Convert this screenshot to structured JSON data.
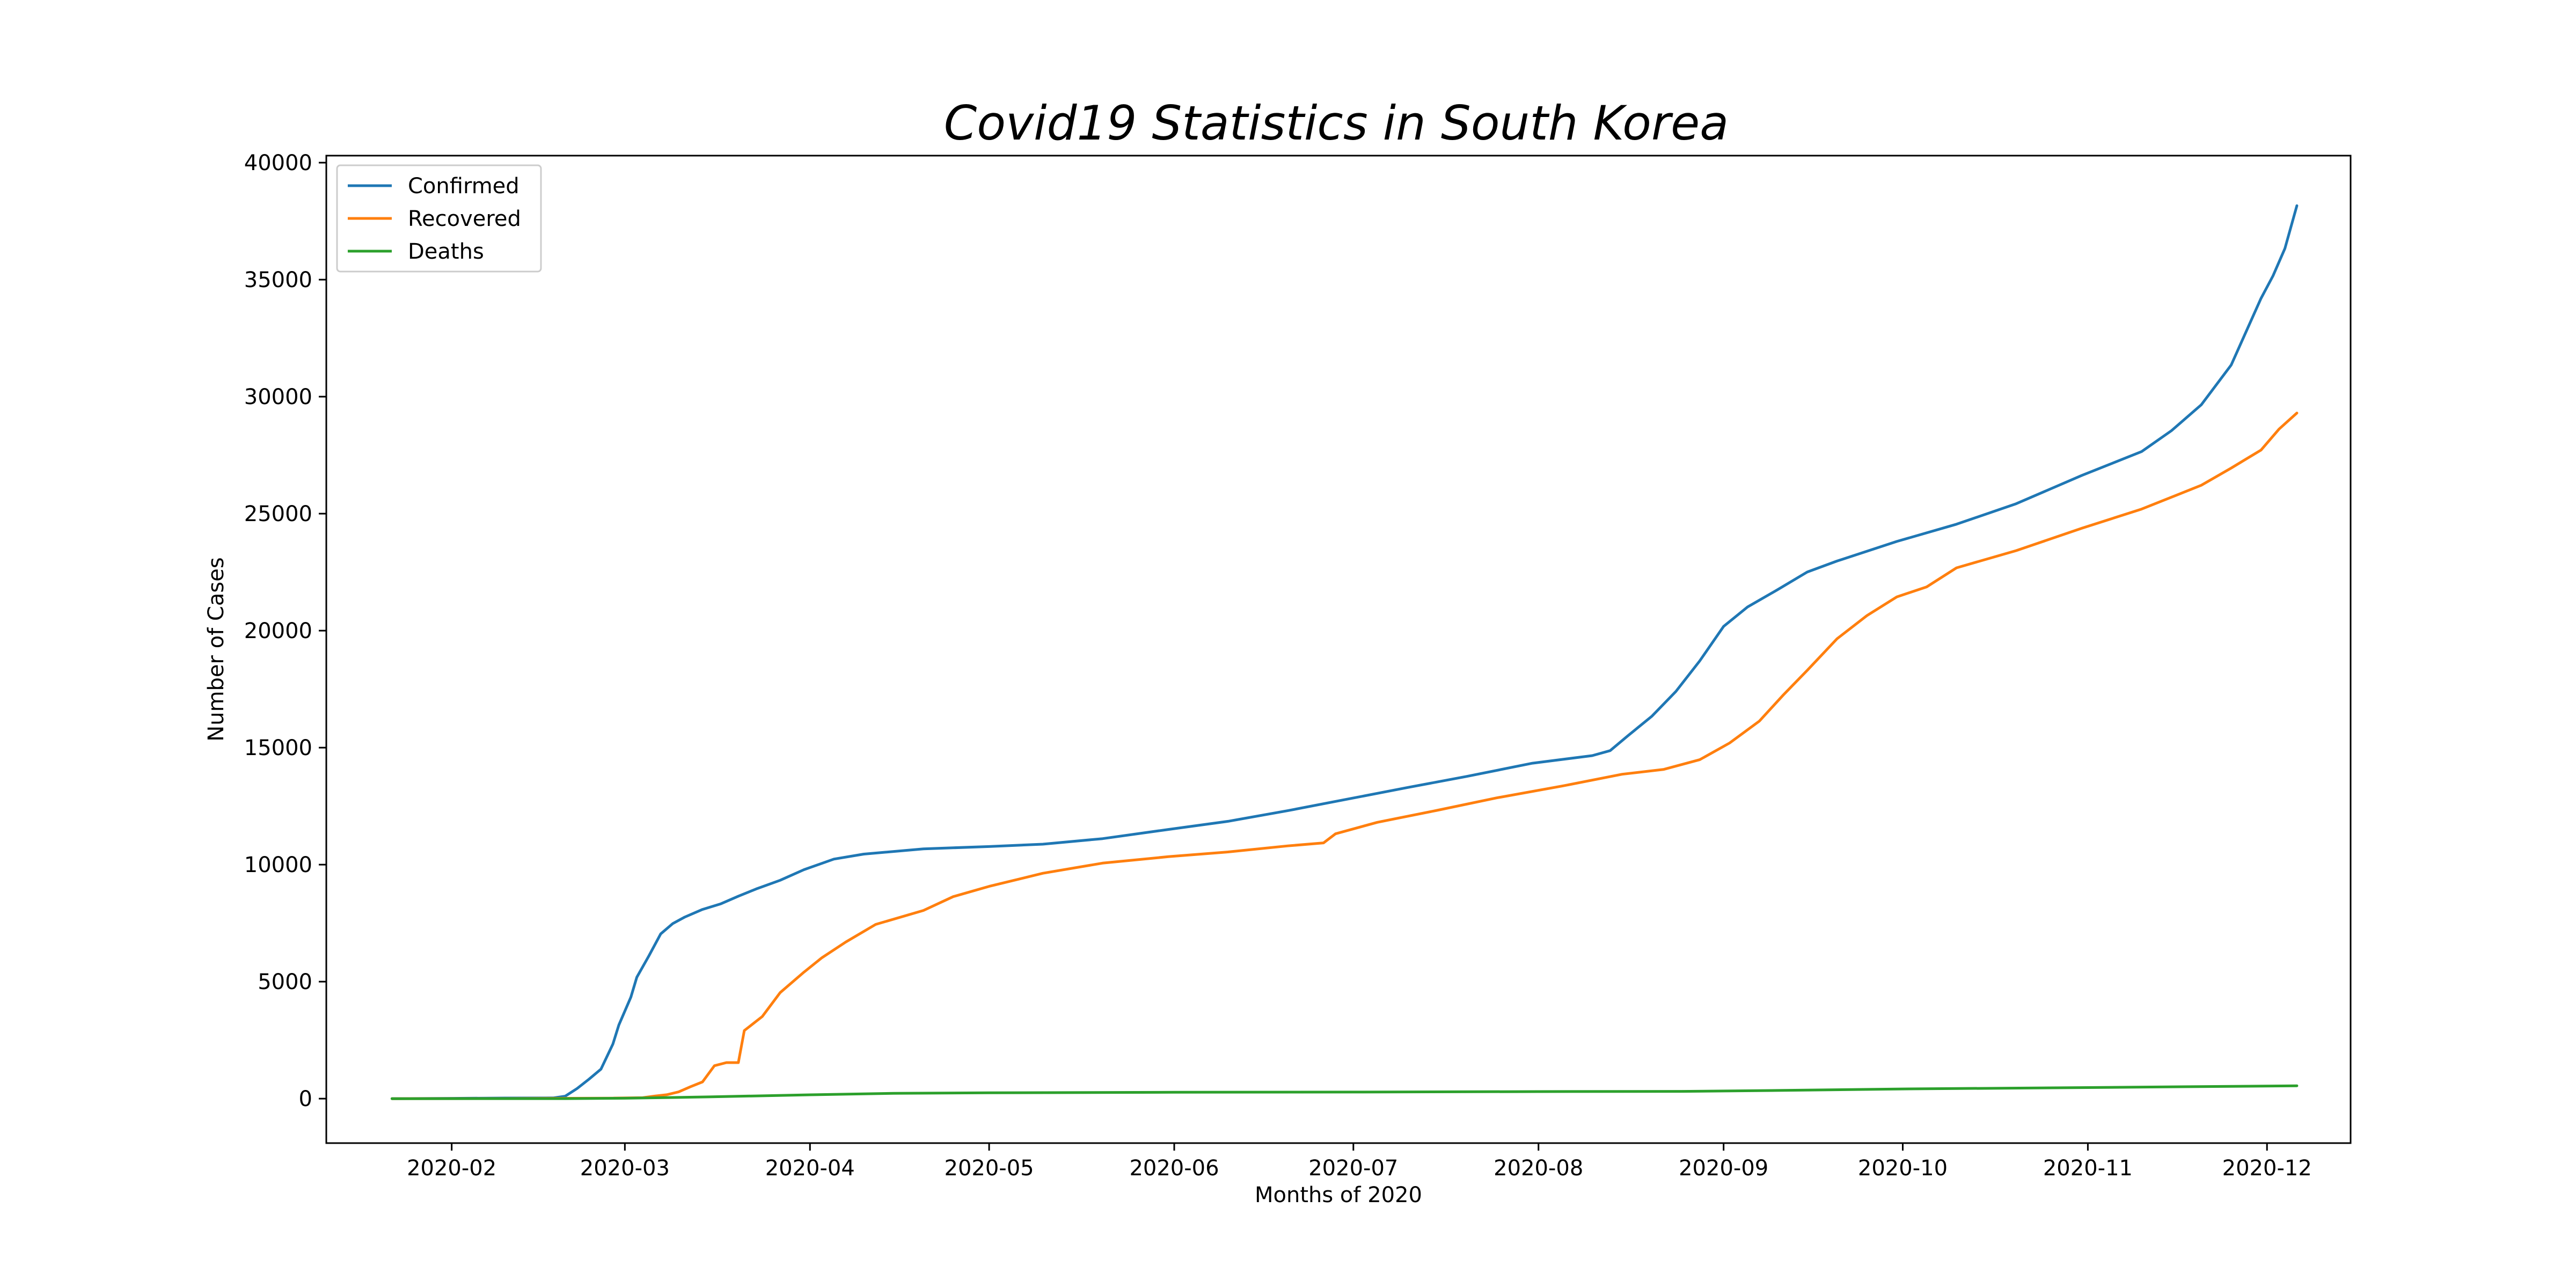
{
  "chart_data": {
    "type": "line",
    "title": "Covid19 Statistics in South Korea",
    "xlabel": "Months of 2020",
    "ylabel": "Number of Cases",
    "x_ticks": [
      "2020-02",
      "2020-03",
      "2020-04",
      "2020-05",
      "2020-06",
      "2020-07",
      "2020-08",
      "2020-09",
      "2020-10",
      "2020-11",
      "2020-12"
    ],
    "y_ticks": [
      0,
      5000,
      10000,
      15000,
      20000,
      25000,
      30000,
      35000,
      40000
    ],
    "xlim": [
      "2020-01-11",
      "2020-12-15"
    ],
    "ylim": [
      -1900,
      40300
    ],
    "grid": false,
    "legend_position": "top-left",
    "series": [
      {
        "name": "Confirmed",
        "color": "#1f77b4",
        "points": [
          [
            "2020-01-22",
            1
          ],
          [
            "2020-02-01",
            12
          ],
          [
            "2020-02-10",
            27
          ],
          [
            "2020-02-18",
            31
          ],
          [
            "2020-02-20",
            104
          ],
          [
            "2020-02-22",
            433
          ],
          [
            "2020-02-24",
            833
          ],
          [
            "2020-02-26",
            1261
          ],
          [
            "2020-02-28",
            2337
          ],
          [
            "2020-02-29",
            3150
          ],
          [
            "2020-03-02",
            4335
          ],
          [
            "2020-03-03",
            5186
          ],
          [
            "2020-03-05",
            6088
          ],
          [
            "2020-03-07",
            7041
          ],
          [
            "2020-03-09",
            7478
          ],
          [
            "2020-03-11",
            7755
          ],
          [
            "2020-03-14",
            8086
          ],
          [
            "2020-03-17",
            8320
          ],
          [
            "2020-03-20",
            8652
          ],
          [
            "2020-03-23",
            8961
          ],
          [
            "2020-03-27",
            9332
          ],
          [
            "2020-03-31",
            9786
          ],
          [
            "2020-04-05",
            10237
          ],
          [
            "2020-04-10",
            10450
          ],
          [
            "2020-04-20",
            10674
          ],
          [
            "2020-05-01",
            10774
          ],
          [
            "2020-05-10",
            10874
          ],
          [
            "2020-05-20",
            11110
          ],
          [
            "2020-05-31",
            11503
          ],
          [
            "2020-06-10",
            11852
          ],
          [
            "2020-06-20",
            12306
          ],
          [
            "2020-06-30",
            12800
          ],
          [
            "2020-07-10",
            13293
          ],
          [
            "2020-07-20",
            13771
          ],
          [
            "2020-07-31",
            14336
          ],
          [
            "2020-08-10",
            14660
          ],
          [
            "2020-08-13",
            14873
          ],
          [
            "2020-08-16",
            15515
          ],
          [
            "2020-08-20",
            16346
          ],
          [
            "2020-08-24",
            17399
          ],
          [
            "2020-08-28",
            18706
          ],
          [
            "2020-09-01",
            20182
          ],
          [
            "2020-09-05",
            21010
          ],
          [
            "2020-09-10",
            21743
          ],
          [
            "2020-09-15",
            22504
          ],
          [
            "2020-09-20",
            22975
          ],
          [
            "2020-09-30",
            23812
          ],
          [
            "2020-10-10",
            24548
          ],
          [
            "2020-10-20",
            25424
          ],
          [
            "2020-10-31",
            26635
          ],
          [
            "2020-11-10",
            27653
          ],
          [
            "2020-11-15",
            28546
          ],
          [
            "2020-11-20",
            29654
          ],
          [
            "2020-11-25",
            31353
          ],
          [
            "2020-11-30",
            34201
          ],
          [
            "2020-12-02",
            35163
          ],
          [
            "2020-12-04",
            36332
          ],
          [
            "2020-12-06",
            38161
          ]
        ]
      },
      {
        "name": "Recovered",
        "color": "#ff7f0e",
        "points": [
          [
            "2020-01-22",
            0
          ],
          [
            "2020-02-10",
            3
          ],
          [
            "2020-02-20",
            16
          ],
          [
            "2020-02-28",
            22
          ],
          [
            "2020-03-04",
            41
          ],
          [
            "2020-03-06",
            108
          ],
          [
            "2020-03-08",
            166
          ],
          [
            "2020-03-10",
            288
          ],
          [
            "2020-03-12",
            510
          ],
          [
            "2020-03-14",
            714
          ],
          [
            "2020-03-16",
            1407
          ],
          [
            "2020-03-18",
            1540
          ],
          [
            "2020-03-20",
            1540
          ],
          [
            "2020-03-21",
            2909
          ],
          [
            "2020-03-24",
            3507
          ],
          [
            "2020-03-27",
            4528
          ],
          [
            "2020-03-31",
            5408
          ],
          [
            "2020-04-03",
            6021
          ],
          [
            "2020-04-07",
            6694
          ],
          [
            "2020-04-12",
            7447
          ],
          [
            "2020-04-20",
            8042
          ],
          [
            "2020-04-25",
            8635
          ],
          [
            "2020-05-01",
            9072
          ],
          [
            "2020-05-10",
            9632
          ],
          [
            "2020-05-20",
            10066
          ],
          [
            "2020-05-31",
            10340
          ],
          [
            "2020-06-10",
            10541
          ],
          [
            "2020-06-20",
            10801
          ],
          [
            "2020-06-26",
            10930
          ],
          [
            "2020-06-28",
            11317
          ],
          [
            "2020-07-05",
            11807
          ],
          [
            "2020-07-15",
            12319
          ],
          [
            "2020-07-25",
            12853
          ],
          [
            "2020-08-05",
            13360
          ],
          [
            "2020-08-15",
            13863
          ],
          [
            "2020-08-22",
            14071
          ],
          [
            "2020-08-28",
            14485
          ],
          [
            "2020-09-02",
            15198
          ],
          [
            "2020-09-07",
            16135
          ],
          [
            "2020-09-11",
            17250
          ],
          [
            "2020-09-15",
            18303
          ],
          [
            "2020-09-20",
            19655
          ],
          [
            "2020-09-25",
            20642
          ],
          [
            "2020-09-30",
            21442
          ],
          [
            "2020-10-05",
            21870
          ],
          [
            "2020-10-10",
            22684
          ],
          [
            "2020-10-20",
            23420
          ],
          [
            "2020-10-31",
            24377
          ],
          [
            "2020-11-10",
            25195
          ],
          [
            "2020-11-20",
            26214
          ],
          [
            "2020-11-25",
            26947
          ],
          [
            "2020-11-30",
            27717
          ],
          [
            "2020-12-03",
            28610
          ],
          [
            "2020-12-06",
            29301
          ]
        ]
      },
      {
        "name": "Deaths",
        "color": "#2ca02c",
        "points": [
          [
            "2020-01-22",
            0
          ],
          [
            "2020-02-20",
            1
          ],
          [
            "2020-03-01",
            17
          ],
          [
            "2020-03-15",
            75
          ],
          [
            "2020-04-01",
            165
          ],
          [
            "2020-04-15",
            225
          ],
          [
            "2020-05-01",
            250
          ],
          [
            "2020-06-01",
            271
          ],
          [
            "2020-07-01",
            282
          ],
          [
            "2020-08-01",
            301
          ],
          [
            "2020-08-25",
            311
          ],
          [
            "2020-09-10",
            350
          ],
          [
            "2020-10-01",
            415
          ],
          [
            "2020-11-01",
            474
          ],
          [
            "2020-12-06",
            549
          ]
        ]
      }
    ]
  }
}
